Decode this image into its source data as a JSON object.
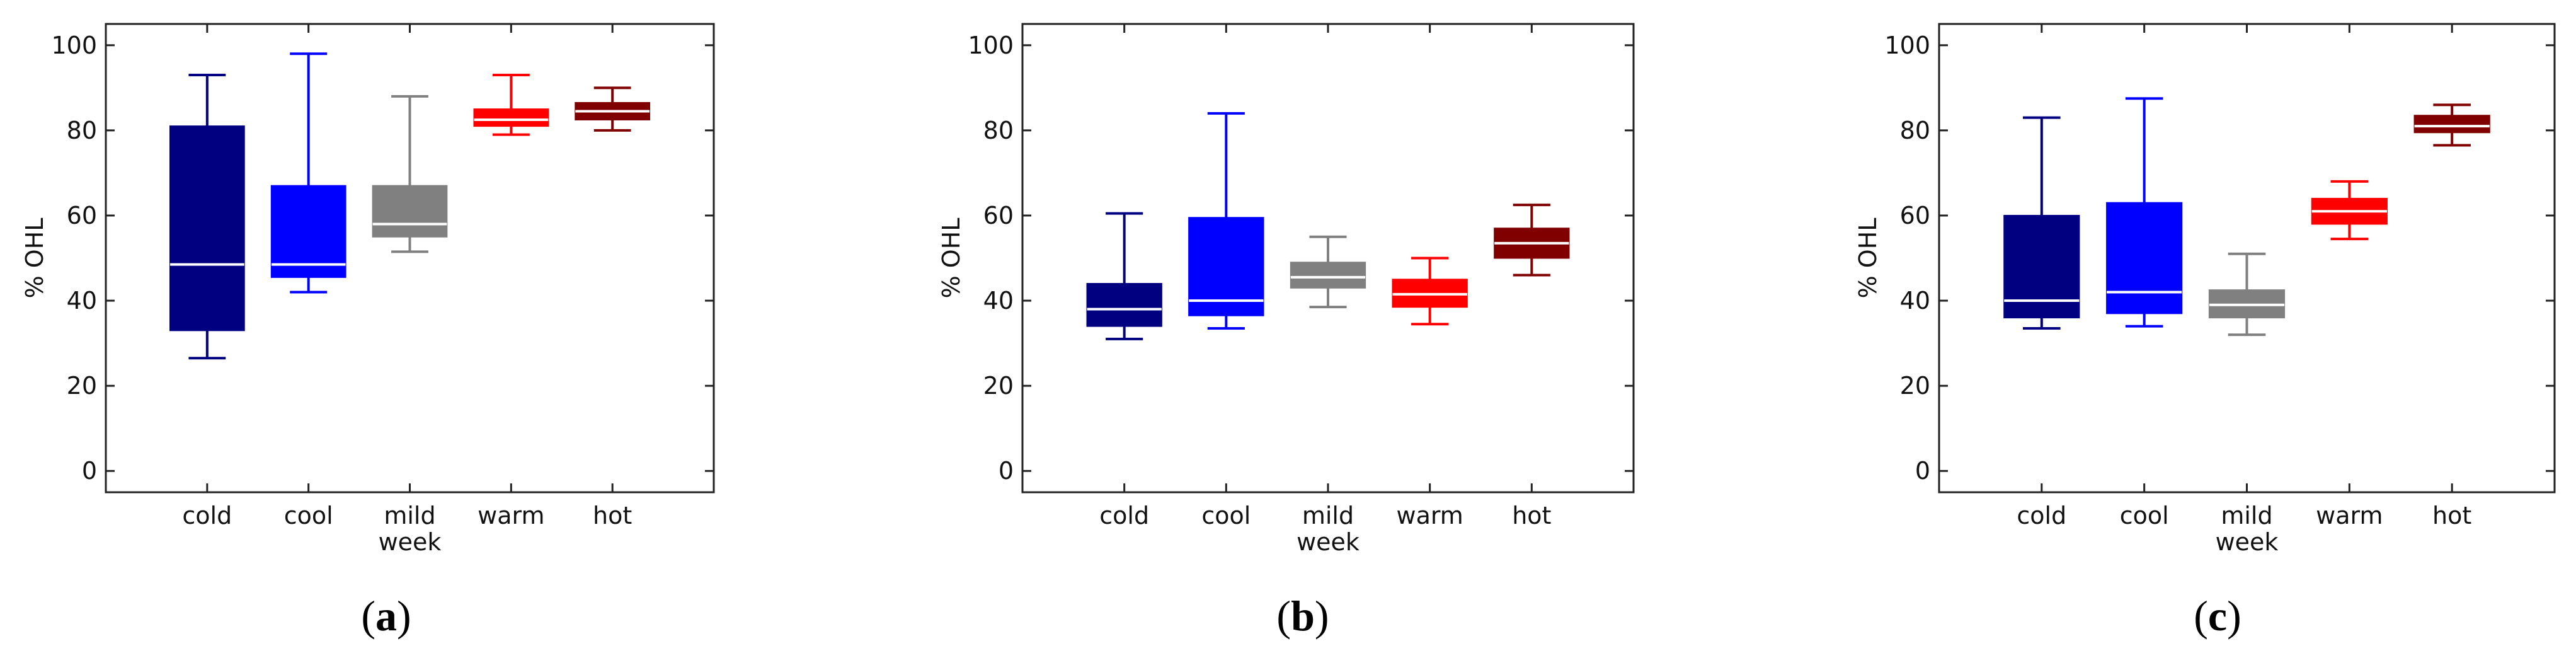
{
  "chart_data": [
    {
      "type": "boxplot",
      "panel_label_prefix": "(",
      "panel_label_letter": "a",
      "panel_label_suffix": ")",
      "xlabel": "week",
      "ylabel": "% OHL",
      "ylim": [
        -5,
        105
      ],
      "yticks": [
        0,
        20,
        40,
        60,
        80,
        100
      ],
      "categories": [
        "cold",
        "cool",
        "mild",
        "warm",
        "hot"
      ],
      "boxes": [
        {
          "category": "cold",
          "whisker_low": 26.5,
          "q1": 33,
          "median": 48.5,
          "q3": 81,
          "whisker_high": 93,
          "color": "#000080"
        },
        {
          "category": "cool",
          "whisker_low": 42,
          "q1": 45.5,
          "median": 48.5,
          "q3": 67,
          "whisker_high": 98,
          "color": "#0000ff"
        },
        {
          "category": "mild",
          "whisker_low": 51.5,
          "q1": 55,
          "median": 58,
          "q3": 67,
          "whisker_high": 88,
          "color": "#808080"
        },
        {
          "category": "warm",
          "whisker_low": 79,
          "q1": 81,
          "median": 82.5,
          "q3": 85,
          "whisker_high": 93,
          "color": "#ff0000"
        },
        {
          "category": "hot",
          "whisker_low": 80,
          "q1": 82.5,
          "median": 84.5,
          "q3": 86.5,
          "whisker_high": 90,
          "color": "#800000"
        }
      ]
    },
    {
      "type": "boxplot",
      "panel_label_prefix": "(",
      "panel_label_letter": "b",
      "panel_label_suffix": ")",
      "xlabel": "week",
      "ylabel": "% OHL",
      "ylim": [
        -5,
        105
      ],
      "yticks": [
        0,
        20,
        40,
        60,
        80,
        100
      ],
      "categories": [
        "cold",
        "cool",
        "mild",
        "warm",
        "hot"
      ],
      "boxes": [
        {
          "category": "cold",
          "whisker_low": 31,
          "q1": 34,
          "median": 38,
          "q3": 44,
          "whisker_high": 60.5,
          "color": "#000080"
        },
        {
          "category": "cool",
          "whisker_low": 33.5,
          "q1": 36.5,
          "median": 40,
          "q3": 59.5,
          "whisker_high": 84,
          "color": "#0000ff"
        },
        {
          "category": "mild",
          "whisker_low": 38.5,
          "q1": 43,
          "median": 45.5,
          "q3": 49,
          "whisker_high": 55,
          "color": "#808080"
        },
        {
          "category": "warm",
          "whisker_low": 34.5,
          "q1": 38.5,
          "median": 41.5,
          "q3": 45,
          "whisker_high": 50,
          "color": "#ff0000"
        },
        {
          "category": "hot",
          "whisker_low": 46,
          "q1": 50,
          "median": 53.5,
          "q3": 57,
          "whisker_high": 62.5,
          "color": "#800000"
        }
      ]
    },
    {
      "type": "boxplot",
      "panel_label_prefix": "(",
      "panel_label_letter": "c",
      "panel_label_suffix": ")",
      "xlabel": "week",
      "ylabel": "% OHL",
      "ylim": [
        -5,
        105
      ],
      "yticks": [
        0,
        20,
        40,
        60,
        80,
        100
      ],
      "categories": [
        "cold",
        "cool",
        "mild",
        "warm",
        "hot"
      ],
      "boxes": [
        {
          "category": "cold",
          "whisker_low": 33.5,
          "q1": 36,
          "median": 40,
          "q3": 60,
          "whisker_high": 83,
          "color": "#000080"
        },
        {
          "category": "cool",
          "whisker_low": 34,
          "q1": 37,
          "median": 42,
          "q3": 63,
          "whisker_high": 87.5,
          "color": "#0000ff"
        },
        {
          "category": "mild",
          "whisker_low": 32,
          "q1": 36,
          "median": 39,
          "q3": 42.5,
          "whisker_high": 51,
          "color": "#808080"
        },
        {
          "category": "warm",
          "whisker_low": 54.5,
          "q1": 58,
          "median": 61,
          "q3": 64,
          "whisker_high": 68,
          "color": "#ff0000"
        },
        {
          "category": "hot",
          "whisker_low": 76.5,
          "q1": 79.5,
          "median": 81,
          "q3": 83.5,
          "whisker_high": 86,
          "color": "#800000"
        }
      ]
    }
  ]
}
